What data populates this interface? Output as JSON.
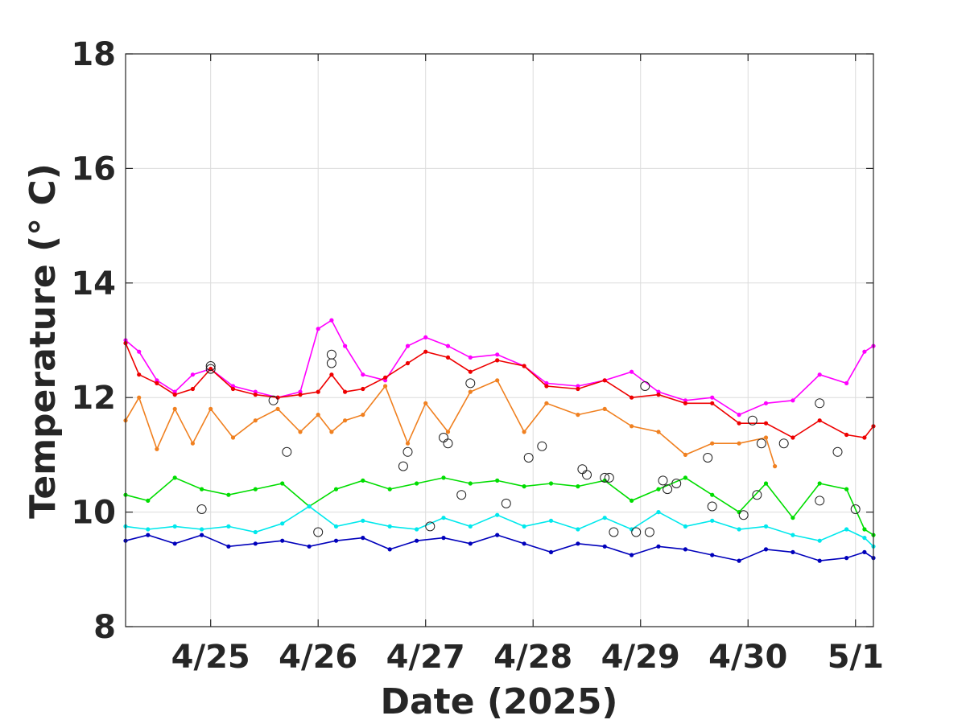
{
  "chart_data": {
    "type": "line",
    "xlabel": "Date (2025)",
    "ylabel": "Temperature (° C)",
    "x_axis": {
      "type": "date",
      "range": [
        "2025-04-24T05:00",
        "2025-05-01T04:00"
      ],
      "ticks": [
        "2025-04-25",
        "2025-04-26",
        "2025-04-27",
        "2025-04-28",
        "2025-04-29",
        "2025-04-30",
        "2025-05-01"
      ],
      "tick_labels": [
        "4/25",
        "4/26",
        "4/27",
        "4/28",
        "4/29",
        "4/30",
        "5/1"
      ]
    },
    "y_axis": {
      "range": [
        8,
        18
      ],
      "ticks": [
        8,
        10,
        12,
        14,
        16,
        18
      ],
      "tick_labels": [
        "8",
        "10",
        "12",
        "14",
        "16",
        "18"
      ]
    },
    "grid": true,
    "legend": "none",
    "series": [
      {
        "color": "#ff00ff",
        "points": [
          [
            "2025-04-24T05:00",
            13.0
          ],
          [
            "2025-04-24T08:00",
            12.8
          ],
          [
            "2025-04-24T12:00",
            12.3
          ],
          [
            "2025-04-24T16:00",
            12.1
          ],
          [
            "2025-04-24T20:00",
            12.4
          ],
          [
            "2025-04-25T00:00",
            12.5
          ],
          [
            "2025-04-25T05:00",
            12.2
          ],
          [
            "2025-04-25T10:00",
            12.1
          ],
          [
            "2025-04-25T15:00",
            12.0
          ],
          [
            "2025-04-25T20:00",
            12.1
          ],
          [
            "2025-04-26T00:00",
            13.2
          ],
          [
            "2025-04-26T03:00",
            13.35
          ],
          [
            "2025-04-26T06:00",
            12.9
          ],
          [
            "2025-04-26T10:00",
            12.4
          ],
          [
            "2025-04-26T15:00",
            12.3
          ],
          [
            "2025-04-26T20:00",
            12.9
          ],
          [
            "2025-04-27T00:00",
            13.05
          ],
          [
            "2025-04-27T05:00",
            12.9
          ],
          [
            "2025-04-27T10:00",
            12.7
          ],
          [
            "2025-04-27T16:00",
            12.75
          ],
          [
            "2025-04-27T22:00",
            12.55
          ],
          [
            "2025-04-28T03:00",
            12.25
          ],
          [
            "2025-04-28T10:00",
            12.2
          ],
          [
            "2025-04-28T16:00",
            12.3
          ],
          [
            "2025-04-28T22:00",
            12.45
          ],
          [
            "2025-04-29T04:00",
            12.1
          ],
          [
            "2025-04-29T10:00",
            11.95
          ],
          [
            "2025-04-29T16:00",
            12.0
          ],
          [
            "2025-04-29T22:00",
            11.7
          ],
          [
            "2025-04-30T04:00",
            11.9
          ],
          [
            "2025-04-30T10:00",
            11.95
          ],
          [
            "2025-04-30T16:00",
            12.4
          ],
          [
            "2025-04-30T22:00",
            12.25
          ],
          [
            "2025-05-01T02:00",
            12.8
          ],
          [
            "2025-05-01T04:00",
            12.9
          ]
        ]
      },
      {
        "color": "#ee0000",
        "points": [
          [
            "2025-04-24T05:00",
            12.95
          ],
          [
            "2025-04-24T08:00",
            12.4
          ],
          [
            "2025-04-24T12:00",
            12.25
          ],
          [
            "2025-04-24T16:00",
            12.05
          ],
          [
            "2025-04-24T20:00",
            12.15
          ],
          [
            "2025-04-25T00:00",
            12.5
          ],
          [
            "2025-04-25T05:00",
            12.15
          ],
          [
            "2025-04-25T10:00",
            12.05
          ],
          [
            "2025-04-25T15:00",
            12.0
          ],
          [
            "2025-04-25T20:00",
            12.05
          ],
          [
            "2025-04-26T00:00",
            12.1
          ],
          [
            "2025-04-26T03:00",
            12.4
          ],
          [
            "2025-04-26T06:00",
            12.1
          ],
          [
            "2025-04-26T10:00",
            12.15
          ],
          [
            "2025-04-26T15:00",
            12.35
          ],
          [
            "2025-04-26T20:00",
            12.6
          ],
          [
            "2025-04-27T00:00",
            12.8
          ],
          [
            "2025-04-27T05:00",
            12.7
          ],
          [
            "2025-04-27T10:00",
            12.45
          ],
          [
            "2025-04-27T16:00",
            12.65
          ],
          [
            "2025-04-27T22:00",
            12.55
          ],
          [
            "2025-04-28T03:00",
            12.2
          ],
          [
            "2025-04-28T10:00",
            12.15
          ],
          [
            "2025-04-28T16:00",
            12.3
          ],
          [
            "2025-04-28T22:00",
            12.0
          ],
          [
            "2025-04-29T04:00",
            12.05
          ],
          [
            "2025-04-29T10:00",
            11.9
          ],
          [
            "2025-04-29T16:00",
            11.9
          ],
          [
            "2025-04-29T22:00",
            11.55
          ],
          [
            "2025-04-30T04:00",
            11.55
          ],
          [
            "2025-04-30T10:00",
            11.3
          ],
          [
            "2025-04-30T16:00",
            11.6
          ],
          [
            "2025-04-30T22:00",
            11.35
          ],
          [
            "2025-05-01T02:00",
            11.3
          ],
          [
            "2025-05-01T04:00",
            11.5
          ]
        ]
      },
      {
        "color": "#f08020",
        "points": [
          [
            "2025-04-24T05:00",
            11.6
          ],
          [
            "2025-04-24T08:00",
            12.0
          ],
          [
            "2025-04-24T12:00",
            11.1
          ],
          [
            "2025-04-24T16:00",
            11.8
          ],
          [
            "2025-04-24T20:00",
            11.2
          ],
          [
            "2025-04-25T00:00",
            11.8
          ],
          [
            "2025-04-25T05:00",
            11.3
          ],
          [
            "2025-04-25T10:00",
            11.6
          ],
          [
            "2025-04-25T15:00",
            11.8
          ],
          [
            "2025-04-25T20:00",
            11.4
          ],
          [
            "2025-04-26T00:00",
            11.7
          ],
          [
            "2025-04-26T03:00",
            11.4
          ],
          [
            "2025-04-26T06:00",
            11.6
          ],
          [
            "2025-04-26T10:00",
            11.7
          ],
          [
            "2025-04-26T15:00",
            12.2
          ],
          [
            "2025-04-26T20:00",
            11.2
          ],
          [
            "2025-04-27T00:00",
            11.9
          ],
          [
            "2025-04-27T05:00",
            11.4
          ],
          [
            "2025-04-27T10:00",
            12.1
          ],
          [
            "2025-04-27T16:00",
            12.3
          ],
          [
            "2025-04-27T22:00",
            11.4
          ],
          [
            "2025-04-28T03:00",
            11.9
          ],
          [
            "2025-04-28T10:00",
            11.7
          ],
          [
            "2025-04-28T16:00",
            11.8
          ],
          [
            "2025-04-28T22:00",
            11.5
          ],
          [
            "2025-04-29T04:00",
            11.4
          ],
          [
            "2025-04-29T10:00",
            11.0
          ],
          [
            "2025-04-29T16:00",
            11.2
          ],
          [
            "2025-04-29T22:00",
            11.2
          ],
          [
            "2025-04-30T04:00",
            11.3
          ],
          [
            "2025-04-30T06:00",
            10.8
          ]
        ]
      },
      {
        "color": "#00dd00",
        "points": [
          [
            "2025-04-24T05:00",
            10.3
          ],
          [
            "2025-04-24T10:00",
            10.2
          ],
          [
            "2025-04-24T16:00",
            10.6
          ],
          [
            "2025-04-24T22:00",
            10.4
          ],
          [
            "2025-04-25T04:00",
            10.3
          ],
          [
            "2025-04-25T10:00",
            10.4
          ],
          [
            "2025-04-25T16:00",
            10.5
          ],
          [
            "2025-04-25T22:00",
            10.1
          ],
          [
            "2025-04-26T04:00",
            10.4
          ],
          [
            "2025-04-26T10:00",
            10.55
          ],
          [
            "2025-04-26T16:00",
            10.4
          ],
          [
            "2025-04-26T22:00",
            10.5
          ],
          [
            "2025-04-27T04:00",
            10.6
          ],
          [
            "2025-04-27T10:00",
            10.5
          ],
          [
            "2025-04-27T16:00",
            10.55
          ],
          [
            "2025-04-27T22:00",
            10.45
          ],
          [
            "2025-04-28T04:00",
            10.5
          ],
          [
            "2025-04-28T10:00",
            10.45
          ],
          [
            "2025-04-28T16:00",
            10.55
          ],
          [
            "2025-04-28T22:00",
            10.2
          ],
          [
            "2025-04-29T04:00",
            10.4
          ],
          [
            "2025-04-29T10:00",
            10.6
          ],
          [
            "2025-04-29T16:00",
            10.3
          ],
          [
            "2025-04-29T22:00",
            10.0
          ],
          [
            "2025-04-30T04:00",
            10.5
          ],
          [
            "2025-04-30T10:00",
            9.9
          ],
          [
            "2025-04-30T16:00",
            10.5
          ],
          [
            "2025-04-30T22:00",
            10.4
          ],
          [
            "2025-05-01T02:00",
            9.7
          ],
          [
            "2025-05-01T04:00",
            9.6
          ]
        ]
      },
      {
        "color": "#00e8ec",
        "points": [
          [
            "2025-04-24T05:00",
            9.75
          ],
          [
            "2025-04-24T10:00",
            9.7
          ],
          [
            "2025-04-24T16:00",
            9.75
          ],
          [
            "2025-04-24T22:00",
            9.7
          ],
          [
            "2025-04-25T04:00",
            9.75
          ],
          [
            "2025-04-25T10:00",
            9.65
          ],
          [
            "2025-04-25T16:00",
            9.8
          ],
          [
            "2025-04-25T22:00",
            10.1
          ],
          [
            "2025-04-26T04:00",
            9.75
          ],
          [
            "2025-04-26T10:00",
            9.85
          ],
          [
            "2025-04-26T16:00",
            9.75
          ],
          [
            "2025-04-26T22:00",
            9.7
          ],
          [
            "2025-04-27T04:00",
            9.9
          ],
          [
            "2025-04-27T10:00",
            9.75
          ],
          [
            "2025-04-27T16:00",
            9.95
          ],
          [
            "2025-04-27T22:00",
            9.75
          ],
          [
            "2025-04-28T04:00",
            9.85
          ],
          [
            "2025-04-28T10:00",
            9.7
          ],
          [
            "2025-04-28T16:00",
            9.9
          ],
          [
            "2025-04-28T22:00",
            9.7
          ],
          [
            "2025-04-29T04:00",
            10.0
          ],
          [
            "2025-04-29T10:00",
            9.75
          ],
          [
            "2025-04-29T16:00",
            9.85
          ],
          [
            "2025-04-29T22:00",
            9.7
          ],
          [
            "2025-04-30T04:00",
            9.75
          ],
          [
            "2025-04-30T10:00",
            9.6
          ],
          [
            "2025-04-30T16:00",
            9.5
          ],
          [
            "2025-04-30T22:00",
            9.7
          ],
          [
            "2025-05-01T02:00",
            9.55
          ],
          [
            "2025-05-01T04:00",
            9.4
          ]
        ]
      },
      {
        "color": "#0000bb",
        "points": [
          [
            "2025-04-24T05:00",
            9.5
          ],
          [
            "2025-04-24T10:00",
            9.6
          ],
          [
            "2025-04-24T16:00",
            9.45
          ],
          [
            "2025-04-24T22:00",
            9.6
          ],
          [
            "2025-04-25T04:00",
            9.4
          ],
          [
            "2025-04-25T10:00",
            9.45
          ],
          [
            "2025-04-25T16:00",
            9.5
          ],
          [
            "2025-04-25T22:00",
            9.4
          ],
          [
            "2025-04-26T04:00",
            9.5
          ],
          [
            "2025-04-26T10:00",
            9.55
          ],
          [
            "2025-04-26T16:00",
            9.35
          ],
          [
            "2025-04-26T22:00",
            9.5
          ],
          [
            "2025-04-27T04:00",
            9.55
          ],
          [
            "2025-04-27T10:00",
            9.45
          ],
          [
            "2025-04-27T16:00",
            9.6
          ],
          [
            "2025-04-27T22:00",
            9.45
          ],
          [
            "2025-04-28T04:00",
            9.3
          ],
          [
            "2025-04-28T10:00",
            9.45
          ],
          [
            "2025-04-28T16:00",
            9.4
          ],
          [
            "2025-04-28T22:00",
            9.25
          ],
          [
            "2025-04-29T04:00",
            9.4
          ],
          [
            "2025-04-29T10:00",
            9.35
          ],
          [
            "2025-04-29T16:00",
            9.25
          ],
          [
            "2025-04-29T22:00",
            9.15
          ],
          [
            "2025-04-30T04:00",
            9.35
          ],
          [
            "2025-04-30T10:00",
            9.3
          ],
          [
            "2025-04-30T16:00",
            9.15
          ],
          [
            "2025-04-30T22:00",
            9.2
          ],
          [
            "2025-05-01T02:00",
            9.3
          ],
          [
            "2025-05-01T04:00",
            9.2
          ]
        ]
      }
    ],
    "circled_points": [
      [
        "2025-04-25T00:00",
        12.55
      ],
      [
        "2025-04-25T00:00",
        12.5
      ],
      [
        "2025-04-25T14:00",
        11.95
      ],
      [
        "2025-04-25T17:00",
        11.05
      ],
      [
        "2025-04-24T22:00",
        10.05
      ],
      [
        "2025-04-26T00:00",
        9.65
      ],
      [
        "2025-04-26T03:00",
        12.75
      ],
      [
        "2025-04-26T03:00",
        12.6
      ],
      [
        "2025-04-26T19:00",
        10.8
      ],
      [
        "2025-04-26T20:00",
        11.05
      ],
      [
        "2025-04-27T01:00",
        9.75
      ],
      [
        "2025-04-27T04:00",
        11.3
      ],
      [
        "2025-04-27T05:00",
        11.2
      ],
      [
        "2025-04-27T08:00",
        10.3
      ],
      [
        "2025-04-27T10:00",
        12.25
      ],
      [
        "2025-04-27T18:00",
        10.15
      ],
      [
        "2025-04-27T23:00",
        10.95
      ],
      [
        "2025-04-28T02:00",
        11.15
      ],
      [
        "2025-04-28T11:00",
        10.75
      ],
      [
        "2025-04-28T12:00",
        10.65
      ],
      [
        "2025-04-28T16:00",
        10.6
      ],
      [
        "2025-04-28T17:00",
        10.6
      ],
      [
        "2025-04-28T18:00",
        9.65
      ],
      [
        "2025-04-28T23:00",
        9.65
      ],
      [
        "2025-04-29T01:00",
        12.2
      ],
      [
        "2025-04-29T02:00",
        9.65
      ],
      [
        "2025-04-29T05:00",
        10.55
      ],
      [
        "2025-04-29T06:00",
        10.4
      ],
      [
        "2025-04-29T08:00",
        10.5
      ],
      [
        "2025-04-29T15:00",
        10.95
      ],
      [
        "2025-04-29T16:00",
        10.1
      ],
      [
        "2025-04-29T23:00",
        9.95
      ],
      [
        "2025-04-30T01:00",
        11.6
      ],
      [
        "2025-04-30T02:00",
        10.3
      ],
      [
        "2025-04-30T03:00",
        11.2
      ],
      [
        "2025-04-30T08:00",
        11.2
      ],
      [
        "2025-04-30T16:00",
        11.9
      ],
      [
        "2025-04-30T16:00",
        10.2
      ],
      [
        "2025-04-30T20:00",
        11.05
      ],
      [
        "2025-05-01T00:00",
        10.05
      ]
    ]
  }
}
